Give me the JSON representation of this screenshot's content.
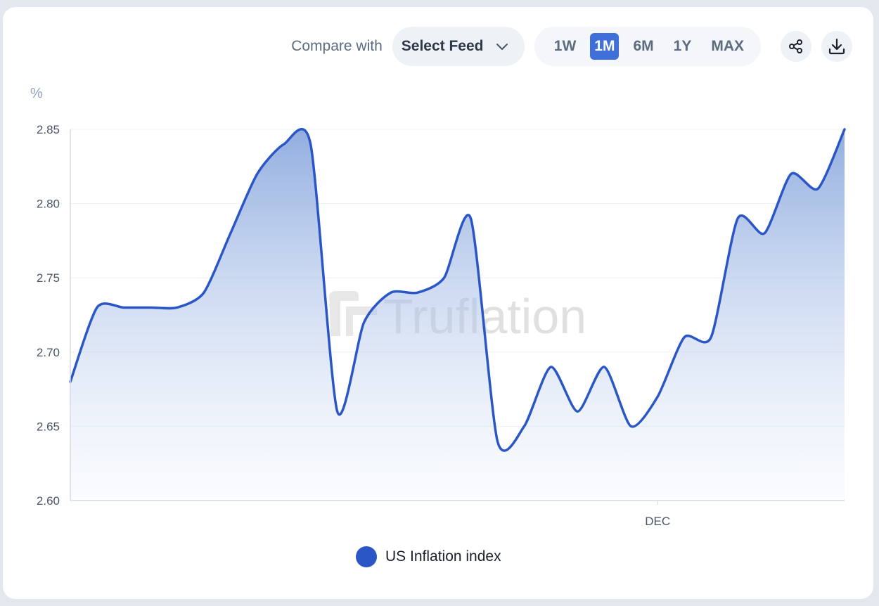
{
  "toolbar": {
    "compare_label": "Compare with",
    "select_feed_label": "Select Feed",
    "ranges": [
      "1W",
      "1M",
      "6M",
      "1Y",
      "MAX"
    ],
    "active_range": "1M",
    "share_icon": "share-icon",
    "download_icon": "download-icon"
  },
  "watermark": "Truflation",
  "colors": {
    "line": "#2a56c6",
    "accent": "#3f6fd9"
  },
  "chart_data": {
    "type": "area",
    "ylabel": "%",
    "ylim": [
      2.6,
      2.85
    ],
    "yticks": [
      "2.85",
      "2.80",
      "2.75",
      "2.70",
      "2.65",
      "2.60"
    ],
    "x_tick_labels": [
      {
        "label": "DEC",
        "index": 22
      }
    ],
    "series": [
      {
        "name": "US Inflation index",
        "values": [
          2.68,
          2.73,
          2.73,
          2.73,
          2.73,
          2.74,
          2.78,
          2.82,
          2.84,
          2.84,
          2.66,
          2.72,
          2.74,
          2.74,
          2.75,
          2.79,
          2.64,
          2.65,
          2.69,
          2.66,
          2.69,
          2.65,
          2.67,
          2.71,
          2.71,
          2.79,
          2.78,
          2.82,
          2.81,
          2.85
        ]
      }
    ],
    "grid": true
  }
}
